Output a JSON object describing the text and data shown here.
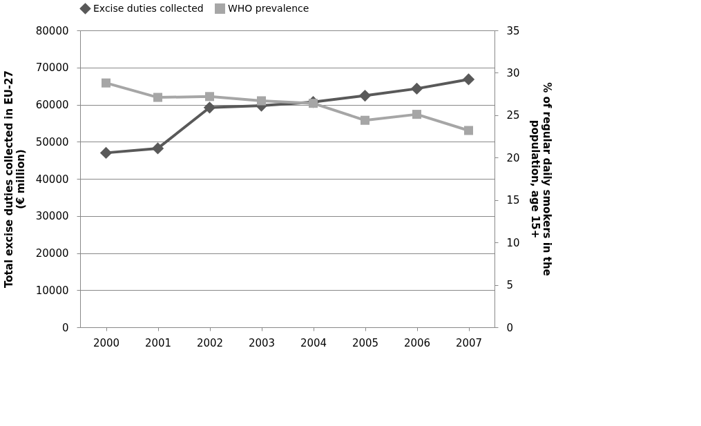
{
  "chart_data": {
    "type": "line",
    "categories": [
      "2000",
      "2001",
      "2002",
      "2003",
      "2004",
      "2005",
      "2006",
      "2007"
    ],
    "ylabel": "Total excise duties collected in EU-27\n(€ million)",
    "y2label": "% of regular daily smokers in the\npopulation, age 15+",
    "ylim": [
      0,
      80000
    ],
    "yticks": [
      0,
      10000,
      20000,
      30000,
      40000,
      50000,
      60000,
      70000,
      80000
    ],
    "y2lim": [
      0,
      35
    ],
    "y2ticks": [
      0,
      5,
      10,
      15,
      20,
      25,
      30,
      35
    ],
    "grid": "y",
    "legend": "top",
    "series": [
      {
        "name": "Excise duties collected",
        "color": "#595959",
        "marker": "diamond",
        "values": [
          47000,
          48200,
          59200,
          59700,
          60700,
          62400,
          64300,
          66800
        ]
      },
      {
        "name": "WHO prevalence",
        "color": "#a6a6a6",
        "marker": "square",
        "axis": "y2",
        "values": [
          28.8,
          27.1,
          27.2,
          26.7,
          26.4,
          24.4,
          25.1,
          23.2
        ]
      }
    ]
  }
}
